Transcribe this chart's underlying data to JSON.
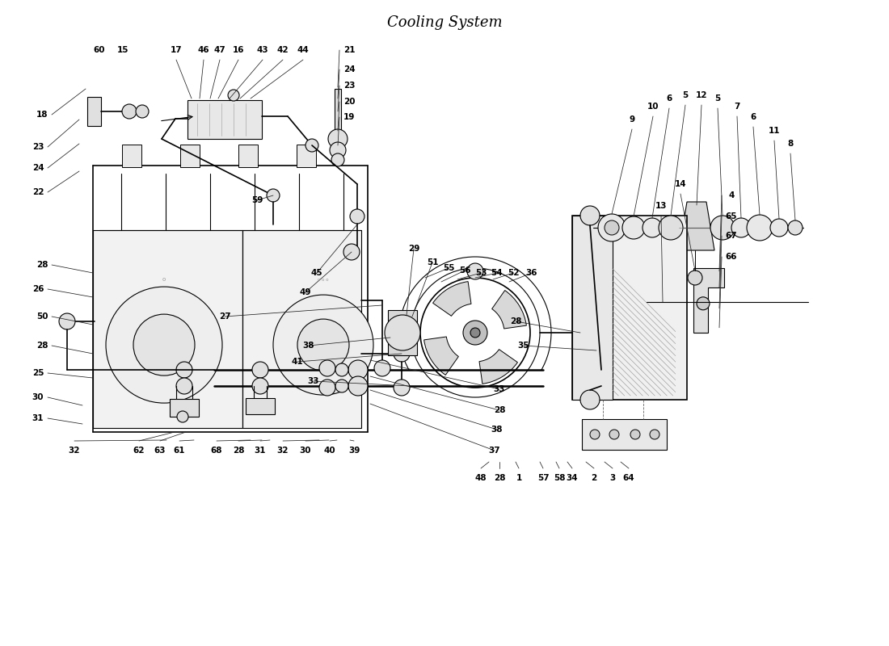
{
  "title": "Cooling System",
  "bg_color": "#ffffff",
  "line_color": "#000000",
  "label_color": "#000000",
  "fig_width": 11.0,
  "fig_height": 8.0,
  "dpi": 100,
  "labels_top_left": [
    [
      1.23,
      7.38,
      "60"
    ],
    [
      1.52,
      7.38,
      "15"
    ],
    [
      2.18,
      7.38,
      "17"
    ],
    [
      2.52,
      7.38,
      "46"
    ],
    [
      2.72,
      7.38,
      "47"
    ],
    [
      2.95,
      7.38,
      "16"
    ],
    [
      3.25,
      7.38,
      "43"
    ],
    [
      3.5,
      7.38,
      "42"
    ],
    [
      3.75,
      7.38,
      "44"
    ],
    [
      4.32,
      7.38,
      "21"
    ],
    [
      4.32,
      7.14,
      "24"
    ],
    [
      4.32,
      6.94,
      "23"
    ],
    [
      4.32,
      6.74,
      "20"
    ],
    [
      4.32,
      6.55,
      "19"
    ]
  ],
  "labels_left": [
    [
      0.52,
      6.58,
      "18"
    ],
    [
      0.47,
      6.18,
      "23"
    ],
    [
      0.47,
      5.92,
      "24"
    ],
    [
      0.47,
      5.62,
      "22"
    ],
    [
      0.52,
      4.72,
      "28"
    ],
    [
      0.47,
      4.42,
      "26"
    ],
    [
      0.52,
      4.08,
      "50"
    ],
    [
      0.52,
      3.72,
      "28"
    ],
    [
      0.47,
      3.38,
      "25"
    ],
    [
      0.47,
      3.08,
      "30"
    ],
    [
      0.47,
      2.82,
      "31"
    ],
    [
      0.92,
      2.42,
      "32"
    ]
  ],
  "labels_bot_left": [
    [
      1.72,
      2.42,
      "62"
    ],
    [
      1.98,
      2.42,
      "63"
    ],
    [
      2.22,
      2.42,
      "61"
    ],
    [
      2.68,
      2.42,
      "68"
    ],
    [
      2.95,
      2.42,
      "28"
    ],
    [
      3.22,
      2.42,
      "31"
    ],
    [
      3.5,
      2.42,
      "32"
    ],
    [
      3.78,
      2.42,
      "30"
    ],
    [
      4.08,
      2.42,
      "40"
    ],
    [
      4.38,
      2.42,
      "39"
    ]
  ],
  "labels_mid": [
    [
      2.78,
      4.08,
      "27"
    ],
    [
      3.68,
      3.52,
      "41"
    ],
    [
      3.88,
      3.28,
      "33"
    ],
    [
      3.18,
      5.52,
      "59"
    ],
    [
      3.92,
      4.62,
      "45"
    ],
    [
      3.78,
      4.38,
      "49"
    ],
    [
      3.82,
      3.72,
      "38"
    ]
  ],
  "labels_fan": [
    [
      5.12,
      4.92,
      "29"
    ],
    [
      5.35,
      4.75,
      "51"
    ],
    [
      5.55,
      4.68,
      "55"
    ],
    [
      5.75,
      4.65,
      "56"
    ],
    [
      5.95,
      4.62,
      "53"
    ],
    [
      6.15,
      4.62,
      "54"
    ],
    [
      6.35,
      4.62,
      "52"
    ],
    [
      6.58,
      4.62,
      "36"
    ],
    [
      6.38,
      4.02,
      "28"
    ],
    [
      6.48,
      3.72,
      "35"
    ],
    [
      6.18,
      3.18,
      "33"
    ],
    [
      6.18,
      2.92,
      "28"
    ],
    [
      6.15,
      2.68,
      "38"
    ],
    [
      6.12,
      2.42,
      "37"
    ]
  ],
  "labels_bot_mid": [
    [
      5.95,
      2.08,
      "48"
    ],
    [
      6.18,
      2.08,
      "28"
    ],
    [
      6.42,
      2.08,
      "1"
    ],
    [
      6.72,
      2.08,
      "57"
    ],
    [
      6.92,
      2.08,
      "58"
    ],
    [
      7.08,
      2.08,
      "34"
    ],
    [
      7.35,
      2.08,
      "2"
    ],
    [
      7.58,
      2.08,
      "3"
    ],
    [
      7.78,
      2.08,
      "64"
    ]
  ],
  "labels_right": [
    [
      9.05,
      5.58,
      "4"
    ],
    [
      9.05,
      5.32,
      "65"
    ],
    [
      9.05,
      5.08,
      "67"
    ],
    [
      9.05,
      4.82,
      "66"
    ]
  ],
  "labels_bolt": [
    [
      7.82,
      6.52,
      "9"
    ],
    [
      8.08,
      6.68,
      "10"
    ],
    [
      8.28,
      6.78,
      "6"
    ],
    [
      8.48,
      6.82,
      "5"
    ],
    [
      8.68,
      6.82,
      "12"
    ],
    [
      8.88,
      6.78,
      "5"
    ],
    [
      9.12,
      6.68,
      "7"
    ],
    [
      9.32,
      6.55,
      "6"
    ],
    [
      9.58,
      6.38,
      "11"
    ],
    [
      9.78,
      6.22,
      "8"
    ],
    [
      8.42,
      5.72,
      "14"
    ],
    [
      8.18,
      5.45,
      "13"
    ]
  ]
}
